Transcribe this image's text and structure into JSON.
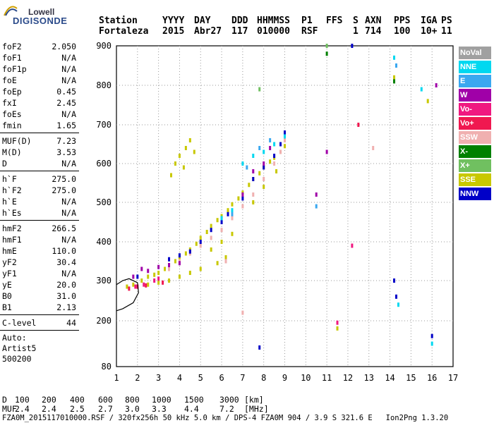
{
  "logo": {
    "brand_top": "Lowell",
    "brand_bottom": "DIGISONDE"
  },
  "header": {
    "labels": [
      "Station",
      "YYYY",
      "DAY",
      "DDD",
      "HHMMSS",
      "P1",
      "FFS",
      "S",
      "AXN",
      "PPS",
      "IGA",
      "PS"
    ],
    "values": [
      "Fortaleza",
      "2015",
      "Abr27",
      "117",
      "010000",
      "RSF",
      "",
      "1",
      "714",
      "100",
      "10+",
      "11"
    ]
  },
  "params": [
    {
      "label": "foF2",
      "value": "2.050"
    },
    {
      "label": "foF1",
      "value": "N/A"
    },
    {
      "label": "foF1p",
      "value": "N/A"
    },
    {
      "label": "foE",
      "value": "N/A"
    },
    {
      "label": "foEp",
      "value": "0.45"
    },
    {
      "label": "fxI",
      "value": "2.45"
    },
    {
      "label": "foEs",
      "value": "N/A"
    },
    {
      "label": "fmin",
      "value": "1.65"
    },
    {
      "sep": true
    },
    {
      "label": "MUF(D)",
      "value": "7.23"
    },
    {
      "label": "M(D)",
      "value": "3.53"
    },
    {
      "label": "D",
      "value": "N/A"
    },
    {
      "sep": true
    },
    {
      "label": "h`F",
      "value": "275.0"
    },
    {
      "label": "h`F2",
      "value": "275.0"
    },
    {
      "label": "h`E",
      "value": "N/A"
    },
    {
      "label": "h`Es",
      "value": "N/A"
    },
    {
      "sep": true
    },
    {
      "label": "hmF2",
      "value": "266.5"
    },
    {
      "label": "hmF1",
      "value": "N/A"
    },
    {
      "label": "hmE",
      "value": "110.0"
    },
    {
      "label": "yF2",
      "value": "30.4"
    },
    {
      "label": "yF1",
      "value": "N/A"
    },
    {
      "label": "yE",
      "value": "20.0"
    },
    {
      "label": "B0",
      "value": "31.0"
    },
    {
      "label": "B1",
      "value": "2.13"
    },
    {
      "sep": true
    },
    {
      "label": "C-level",
      "value": "44"
    },
    {
      "sep": true
    }
  ],
  "auto": {
    "line1": "Auto:",
    "line2": "Artist5",
    "line3": "500200"
  },
  "legend": [
    {
      "label": "NoVal",
      "color": "#a0a0a0"
    },
    {
      "label": "NNE",
      "color": "#00d8f0"
    },
    {
      "label": "E",
      "color": "#3aa8f0"
    },
    {
      "label": "W",
      "color": "#a000a8"
    },
    {
      "label": "Vo-",
      "color": "#f01880"
    },
    {
      "label": "Vo+",
      "color": "#f01850"
    },
    {
      "label": "SSW",
      "color": "#f0b0b0"
    },
    {
      "label": "X-",
      "color": "#008000"
    },
    {
      "label": "X+",
      "color": "#70c060"
    },
    {
      "label": "SSE",
      "color": "#c8c800"
    },
    {
      "label": "NNW",
      "color": "#0000c8"
    }
  ],
  "distance_row": {
    "label": "D",
    "values": [
      "100",
      "200",
      "400",
      "600",
      "800",
      "1000",
      "1500",
      "3000"
    ],
    "unit": "[km]"
  },
  "muf_row": {
    "label": "MUF",
    "values": [
      "2.4",
      "2.4",
      "2.5",
      "2.7",
      "3.0",
      "3.3",
      "4.4",
      "7.2"
    ],
    "unit": "[MHz]"
  },
  "footer": "FZA0M_2015117010000.RSF / 320fx256h 50 kHz 5.0 km / DPS-4 FZA0M 904 / 3.9 S 321.6 E   Ion2Png 1.3.20",
  "chart_data": {
    "type": "scatter",
    "title": "",
    "xlabel": "",
    "ylabel": "",
    "x_ticks": [
      "1",
      "2",
      "3",
      "4",
      "5",
      "6",
      "7",
      "8",
      "9",
      "10",
      "11",
      "12",
      "13",
      "14",
      "15",
      "16",
      "17"
    ],
    "y_ticks": [
      "80",
      "200",
      "300",
      "400",
      "500",
      "600",
      "700",
      "800",
      "900"
    ],
    "xlim": [
      1,
      17
    ],
    "y_axis": "nonlinear (80 at bottom, 200 to 900 roughly evenly spaced)",
    "grid": "dotted",
    "series": [
      {
        "name": "SSE",
        "color": "#c8c800",
        "points": [
          [
            1.5,
            285
          ],
          [
            1.8,
            290
          ],
          [
            2.2,
            300
          ],
          [
            2.5,
            310
          ],
          [
            2.8,
            315
          ],
          [
            3.0,
            320
          ],
          [
            3.3,
            330
          ],
          [
            3.5,
            340
          ],
          [
            3.8,
            350
          ],
          [
            4.0,
            360
          ],
          [
            4.3,
            370
          ],
          [
            4.5,
            380
          ],
          [
            4.8,
            395
          ],
          [
            5.0,
            410
          ],
          [
            5.3,
            425
          ],
          [
            5.5,
            440
          ],
          [
            5.8,
            455
          ],
          [
            6.0,
            465
          ],
          [
            6.3,
            480
          ],
          [
            6.5,
            495
          ],
          [
            6.8,
            510
          ],
          [
            7.0,
            525
          ],
          [
            7.3,
            545
          ],
          [
            7.5,
            560
          ],
          [
            7.8,
            575
          ],
          [
            8.0,
            590
          ],
          [
            8.3,
            605
          ],
          [
            8.5,
            615
          ],
          [
            8.8,
            630
          ],
          [
            9.0,
            645
          ],
          [
            3.8,
            600
          ],
          [
            4.0,
            620
          ],
          [
            4.3,
            640
          ],
          [
            4.5,
            660
          ],
          [
            4.7,
            630
          ],
          [
            4.2,
            590
          ],
          [
            3.6,
            570
          ],
          [
            5.5,
            380
          ],
          [
            6.0,
            400
          ],
          [
            6.5,
            420
          ],
          [
            3.5,
            300
          ],
          [
            4.0,
            310
          ],
          [
            4.5,
            320
          ],
          [
            5.0,
            330
          ],
          [
            2.5,
            290
          ],
          [
            3.0,
            295
          ],
          [
            5.8,
            345
          ],
          [
            6.2,
            360
          ],
          [
            7.5,
            500
          ],
          [
            8.0,
            540
          ],
          [
            8.6,
            580
          ],
          [
            11.5,
            180
          ],
          [
            14.2,
            820
          ],
          [
            15.8,
            760
          ]
        ]
      },
      {
        "name": "SSW",
        "color": "#f0b0b0",
        "points": [
          [
            3.5,
            330
          ],
          [
            4.0,
            350
          ],
          [
            4.5,
            370
          ],
          [
            5.0,
            390
          ],
          [
            5.5,
            410
          ],
          [
            6.0,
            430
          ],
          [
            6.5,
            460
          ],
          [
            7.0,
            490
          ],
          [
            7.5,
            520
          ],
          [
            8.0,
            560
          ],
          [
            8.5,
            600
          ],
          [
            8.8,
            630
          ],
          [
            7.0,
            220
          ],
          [
            9.0,
            660
          ],
          [
            13.2,
            640
          ],
          [
            6.2,
            350
          ]
        ]
      },
      {
        "name": "NNW",
        "color": "#0000c8",
        "points": [
          [
            2.0,
            310
          ],
          [
            3.5,
            355
          ],
          [
            4.0,
            365
          ],
          [
            4.5,
            375
          ],
          [
            5.0,
            400
          ],
          [
            5.5,
            430
          ],
          [
            6.0,
            450
          ],
          [
            6.3,
            470
          ],
          [
            7.0,
            510
          ],
          [
            7.5,
            560
          ],
          [
            8.0,
            590
          ],
          [
            8.5,
            620
          ],
          [
            8.8,
            650
          ],
          [
            9.0,
            680
          ],
          [
            12.2,
            900
          ],
          [
            14.2,
            300
          ],
          [
            14.3,
            260
          ],
          [
            16.0,
            160
          ],
          [
            7.8,
            130
          ]
        ]
      },
      {
        "name": "W",
        "color": "#a000a8",
        "points": [
          [
            1.8,
            310
          ],
          [
            2.2,
            330
          ],
          [
            2.5,
            325
          ],
          [
            3.0,
            335
          ],
          [
            3.5,
            340
          ],
          [
            4.0,
            345
          ],
          [
            7.0,
            520
          ],
          [
            7.5,
            580
          ],
          [
            8.0,
            600
          ],
          [
            8.3,
            640
          ],
          [
            10.5,
            520
          ],
          [
            11.0,
            630
          ],
          [
            16.2,
            800
          ]
        ]
      },
      {
        "name": "NNE",
        "color": "#00d8f0",
        "points": [
          [
            6.0,
            460
          ],
          [
            6.5,
            480
          ],
          [
            7.0,
            600
          ],
          [
            7.5,
            620
          ],
          [
            8.0,
            630
          ],
          [
            8.5,
            650
          ],
          [
            9.0,
            670
          ],
          [
            14.2,
            870
          ],
          [
            14.4,
            240
          ],
          [
            15.5,
            790
          ],
          [
            16.0,
            140
          ]
        ]
      },
      {
        "name": "E",
        "color": "#3aa8f0",
        "points": [
          [
            6.5,
            470
          ],
          [
            7.2,
            590
          ],
          [
            7.8,
            640
          ],
          [
            8.3,
            660
          ],
          [
            10.5,
            490
          ],
          [
            14.3,
            850
          ]
        ]
      },
      {
        "name": "Vo-",
        "color": "#f01880",
        "points": [
          [
            1.9,
            285
          ],
          [
            2.3,
            290
          ],
          [
            2.8,
            300
          ],
          [
            3.0,
            305
          ],
          [
            11.5,
            195
          ],
          [
            12.2,
            390
          ]
        ]
      },
      {
        "name": "Vo+",
        "color": "#f01850",
        "points": [
          [
            1.6,
            280
          ],
          [
            2.0,
            285
          ],
          [
            2.4,
            288
          ],
          [
            3.2,
            295
          ],
          [
            12.5,
            700
          ]
        ]
      },
      {
        "name": "X-",
        "color": "#008000",
        "points": [
          [
            11.0,
            880
          ],
          [
            14.2,
            810
          ]
        ]
      },
      {
        "name": "X+",
        "color": "#70c060",
        "points": [
          [
            7.8,
            790
          ],
          [
            11.0,
            900
          ]
        ]
      }
    ],
    "profile_curve_color": "#000000"
  }
}
